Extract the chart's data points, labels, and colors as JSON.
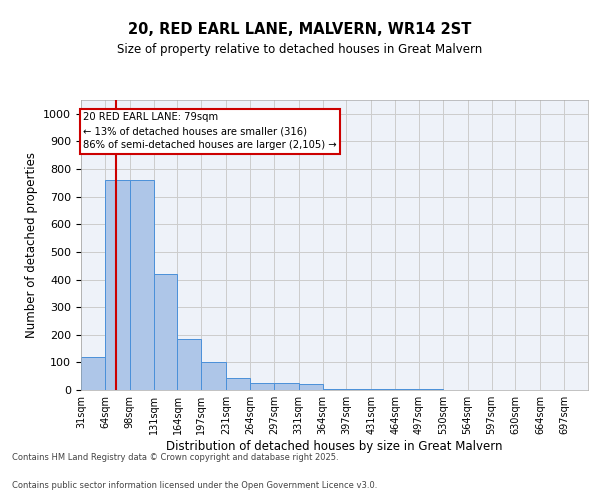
{
  "title": "20, RED EARL LANE, MALVERN, WR14 2ST",
  "subtitle": "Size of property relative to detached houses in Great Malvern",
  "xlabel": "Distribution of detached houses by size in Great Malvern",
  "ylabel": "Number of detached properties",
  "bin_labels": [
    "31sqm",
    "64sqm",
    "98sqm",
    "131sqm",
    "164sqm",
    "197sqm",
    "231sqm",
    "264sqm",
    "297sqm",
    "331sqm",
    "364sqm",
    "397sqm",
    "431sqm",
    "464sqm",
    "497sqm",
    "530sqm",
    "564sqm",
    "597sqm",
    "630sqm",
    "664sqm",
    "697sqm"
  ],
  "bin_edges": [
    31,
    64,
    98,
    131,
    164,
    197,
    231,
    264,
    297,
    331,
    364,
    397,
    431,
    464,
    497,
    530,
    564,
    597,
    630,
    664,
    697
  ],
  "bar_heights": [
    120,
    760,
    760,
    420,
    185,
    100,
    45,
    25,
    25,
    20,
    5,
    5,
    3,
    2,
    2,
    1,
    1,
    1,
    0,
    0
  ],
  "bar_color": "#aec6e8",
  "bar_edge_color": "#4a90d9",
  "grid_color": "#cccccc",
  "background_color": "#eef2f9",
  "annotation_text": "20 RED EARL LANE: 79sqm\n← 13% of detached houses are smaller (316)\n86% of semi-detached houses are larger (2,105) →",
  "annotation_box_color": "#ffffff",
  "annotation_border_color": "#cc0000",
  "red_line_x": 79,
  "ylim": [
    0,
    1050
  ],
  "yticks": [
    0,
    100,
    200,
    300,
    400,
    500,
    600,
    700,
    800,
    900,
    1000
  ],
  "footer_line1": "Contains HM Land Registry data © Crown copyright and database right 2025.",
  "footer_line2": "Contains public sector information licensed under the Open Government Licence v3.0."
}
